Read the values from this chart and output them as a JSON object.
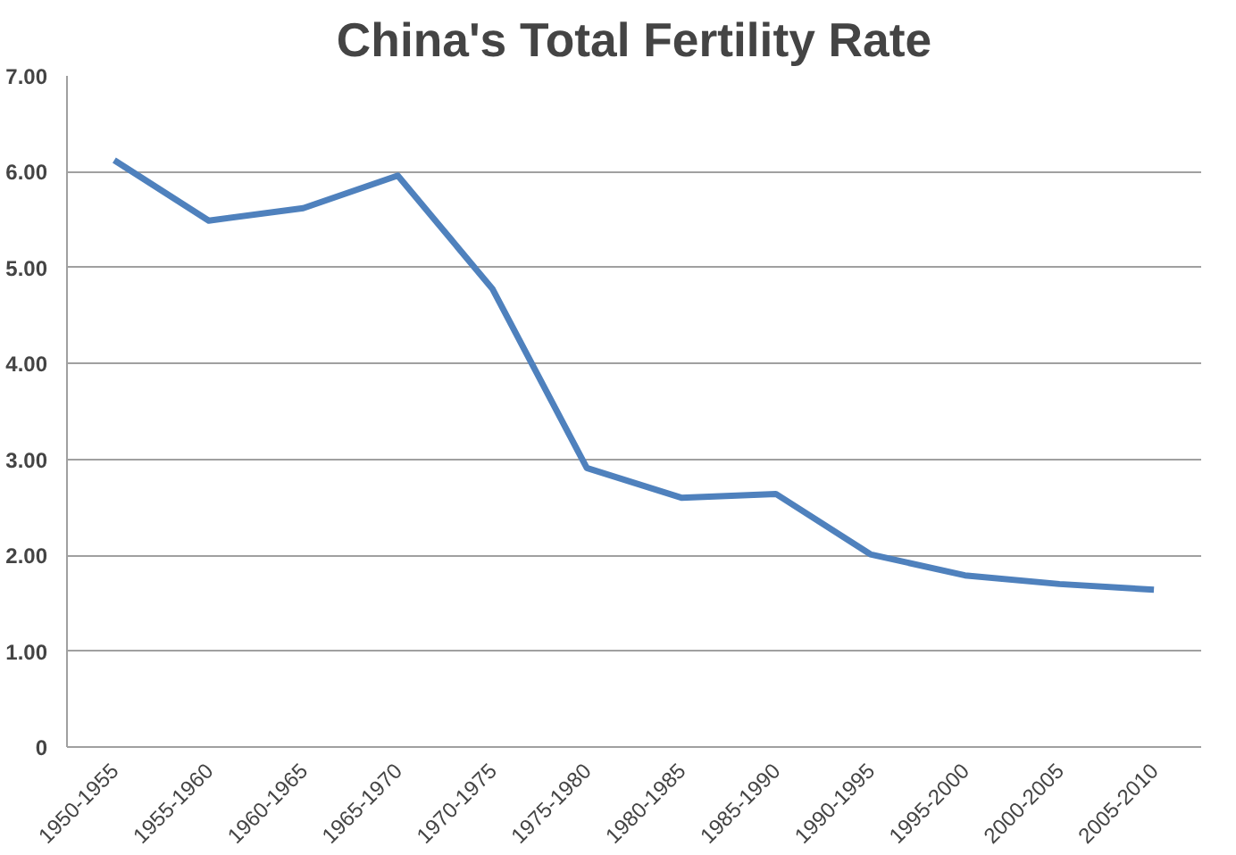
{
  "chart_data": {
    "type": "line",
    "title": "China's Total Fertility Rate",
    "categories": [
      "1950-1955",
      "1955-1960",
      "1960-1965",
      "1965-1970",
      "1970-1975",
      "1975-1980",
      "1980-1985",
      "1985-1990",
      "1990-1995",
      "1995-2000",
      "2000-2005",
      "2005-2010"
    ],
    "series": [
      {
        "color": "#4f81bd",
        "values": [
          6.12,
          5.49,
          5.62,
          5.96,
          4.78,
          2.91,
          2.6,
          2.64,
          2.01,
          1.79,
          1.7,
          1.64
        ]
      }
    ],
    "ylim": [
      0,
      7
    ],
    "yticks": [
      {
        "value": 0,
        "label": "0"
      },
      {
        "value": 1,
        "label": "1.00"
      },
      {
        "value": 2,
        "label": "2.00"
      },
      {
        "value": 3,
        "label": "3.00"
      },
      {
        "value": 4,
        "label": "4.00"
      },
      {
        "value": 5,
        "label": "5.00"
      },
      {
        "value": 6,
        "label": "6.00"
      },
      {
        "value": 7,
        "label": "7.00"
      }
    ],
    "grid": "y",
    "marker": "none",
    "line_style": "solid"
  }
}
